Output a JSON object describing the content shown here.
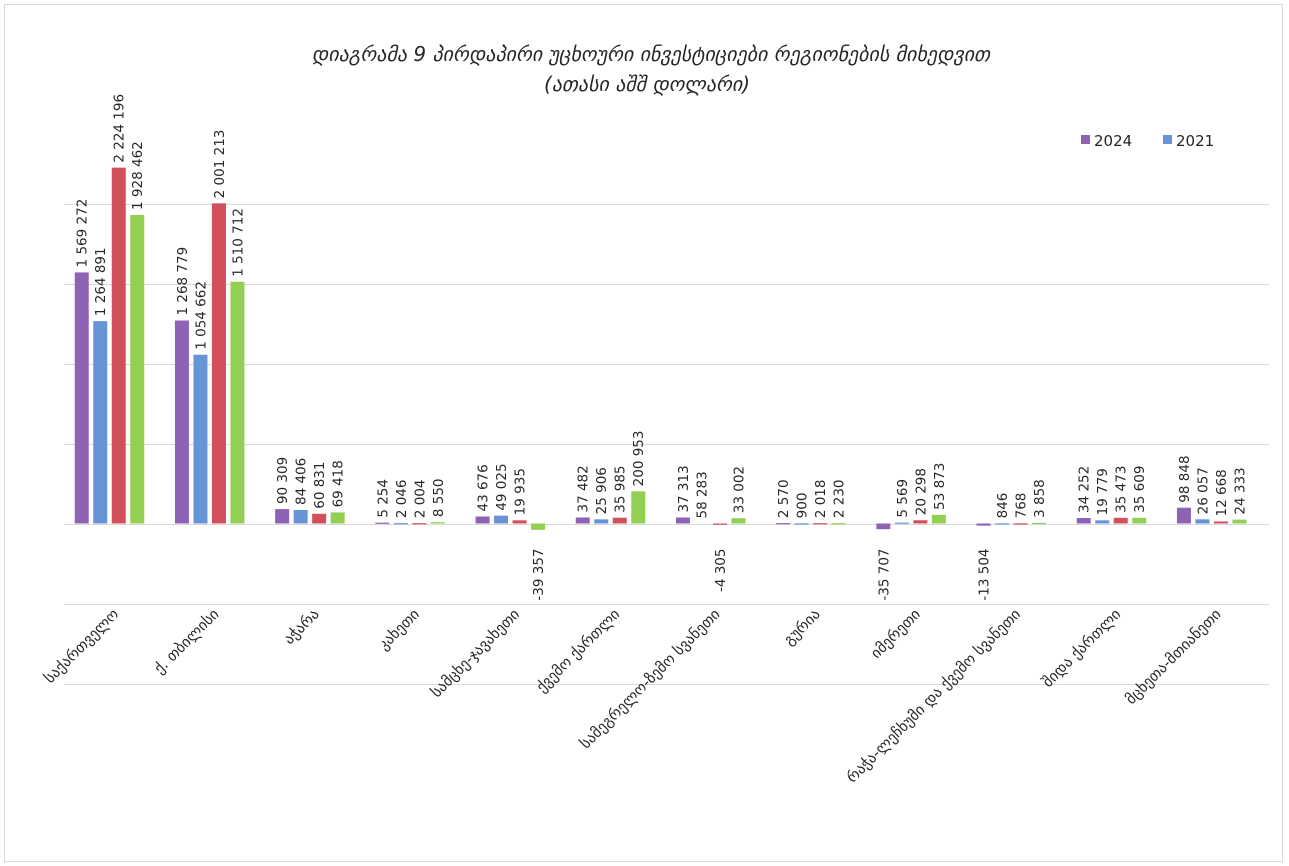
{
  "chart_data": {
    "type": "bar",
    "title": "დიაგრამა 9 პირდაპირი უცხოური ინვესტიციები რეგიონების მიხედვით",
    "subtitle": "(ათასი აშშ დოლარი)",
    "legend_position": "top-right",
    "grid": true,
    "ylim": [
      -1000000,
      2500000
    ],
    "categories": [
      "საქართველო",
      "ქ. თბილისი",
      "აჭარა",
      "კახეთი",
      "სამცხე-ჯავახეთი",
      "ქვემო ქართლი",
      "სამეგრელო-ზემო სვანეთი",
      "გურია",
      "იმერეთი",
      "რაჭა-ლეჩხუმი და ქვემო სვანეთი",
      "შიდა ქართლი",
      "მცხეთა-მთიანეთი"
    ],
    "series": [
      {
        "name": "2024",
        "color": "#8e63b5",
        "values": [
          1569272,
          1268779,
          90309,
          5254,
          43676,
          37482,
          37313,
          2570,
          -35707,
          -13504,
          34252,
          98848
        ],
        "labels": [
          "1 569 272",
          "1 268 779",
          "90 309",
          "5 254",
          "43 676",
          "37 482",
          "37 313",
          "2 570",
          "-35 707",
          "-13 504",
          "34 252",
          "98 848"
        ]
      },
      {
        "name": "2021",
        "color": "#6794d6",
        "values": [
          1264891,
          1054662,
          84406,
          2046,
          49025,
          25906,
          0,
          900,
          5569,
          846,
          19779,
          26057
        ],
        "labels": [
          "1 264 891",
          "1 054 662",
          "84 406",
          "2 046",
          "49 025",
          "25 906",
          "",
          "900",
          "5 569",
          "846",
          "19 779",
          "26 057"
        ]
      },
      {
        "name": "",
        "color": "#d2505c",
        "values": [
          2224196,
          2001213,
          60831,
          2004,
          19935,
          35985,
          -4305,
          2018,
          20298,
          768,
          35473,
          12668
        ],
        "labels": [
          "2 224 196",
          "2 001 213",
          "60 831",
          "2 004",
          "19 935",
          "35 985",
          "-4 305",
          "2 018",
          "20 298",
          "768",
          "35 473",
          "12 668"
        ]
      },
      {
        "name": "",
        "color": "#92cf53",
        "values": [
          1928462,
          1510712,
          69418,
          8550,
          -39357,
          200953,
          33002,
          2230,
          53873,
          3858,
          35609,
          24333
        ],
        "labels": [
          "1 928 462",
          "1 510 712",
          "69 418",
          "8 550",
          "-39 357",
          "200 953",
          "33 002",
          "2 230",
          "53 873",
          "3 858",
          "35 609",
          "24 333"
        ]
      }
    ],
    "extra_labels": [
      {
        "category_index": 6,
        "text": "58 283"
      }
    ]
  }
}
